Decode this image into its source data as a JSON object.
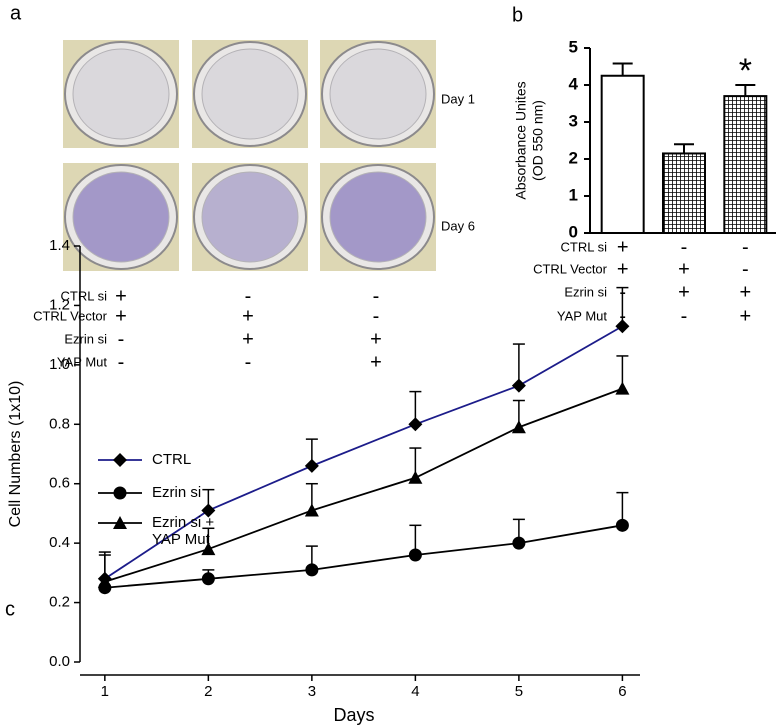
{
  "panel_a": {
    "label": "a",
    "days": [
      "Day 1",
      "Day 6"
    ],
    "conditions": {
      "rows": [
        "CTRL si",
        "CTRL Vector",
        "Ezrin si",
        "YAP Mut"
      ],
      "signs": [
        [
          "+",
          "-",
          "-"
        ],
        [
          "+",
          "+",
          "-"
        ],
        [
          "-",
          "+",
          "+"
        ],
        [
          "-",
          "-",
          "+"
        ]
      ]
    }
  },
  "chart_data": [
    {
      "type": "bar",
      "label": "b",
      "ylabel": [
        "Absorbance Unites",
        "(OD 550 nm)"
      ],
      "categories": [
        null,
        null,
        null
      ],
      "values": [
        4.25,
        2.15,
        3.7
      ],
      "errors": [
        0.33,
        0.25,
        0.3
      ],
      "hatch": [
        false,
        true,
        true
      ],
      "color": "#ffffff",
      "ylim": [
        0,
        5
      ],
      "yticks": [
        0,
        1,
        2,
        3,
        4,
        5
      ],
      "annotations": [
        {
          "text": "*",
          "category": 2
        }
      ],
      "conditions": {
        "rows": [
          "CTRL si",
          "CTRL Vector",
          "Ezrin si",
          "YAP Mut"
        ],
        "signs": [
          [
            "+",
            "-",
            "-"
          ],
          [
            "+",
            "+",
            "-"
          ],
          [
            "-",
            "+",
            "+"
          ],
          [
            "-",
            "-",
            "+"
          ]
        ]
      }
    },
    {
      "type": "line",
      "label": "c",
      "xlabel": "Days",
      "ylabel": "Cell Numbers (1x10)",
      "x": [
        1,
        2,
        3,
        4,
        5,
        6
      ],
      "series": [
        {
          "name": "CTRL",
          "color": "#1c1c8a",
          "marker": "diamond",
          "values": [
            0.28,
            0.51,
            0.66,
            0.8,
            0.93,
            1.13
          ],
          "errors": [
            0.08,
            0.07,
            0.09,
            0.11,
            0.14,
            0.13
          ]
        },
        {
          "name": "Ezrin si",
          "color": "#000000",
          "marker": "circle",
          "values": [
            0.25,
            0.28,
            0.31,
            0.36,
            0.4,
            0.46
          ],
          "errors": [
            0.03,
            0.03,
            0.08,
            0.1,
            0.08,
            0.11
          ]
        },
        {
          "name": "Ezrin si + YAP Mut",
          "color": "#000000",
          "marker": "triangle",
          "values": [
            0.27,
            0.38,
            0.51,
            0.62,
            0.79,
            0.92
          ],
          "errors": [
            0.1,
            0.07,
            0.09,
            0.1,
            0.09,
            0.11
          ]
        }
      ],
      "xlim": [
        0.76,
        6.17
      ],
      "xticks": [
        1,
        2,
        3,
        4,
        5,
        6
      ],
      "ylim": [
        0,
        1.4
      ],
      "yticks": [
        {
          "value": 0,
          "label": "0.0"
        },
        0.2,
        0.4,
        0.6,
        0.8,
        {
          "value": 1,
          "label": "1.0"
        },
        1.2,
        1.4
      ],
      "legend": "upper left"
    }
  ]
}
